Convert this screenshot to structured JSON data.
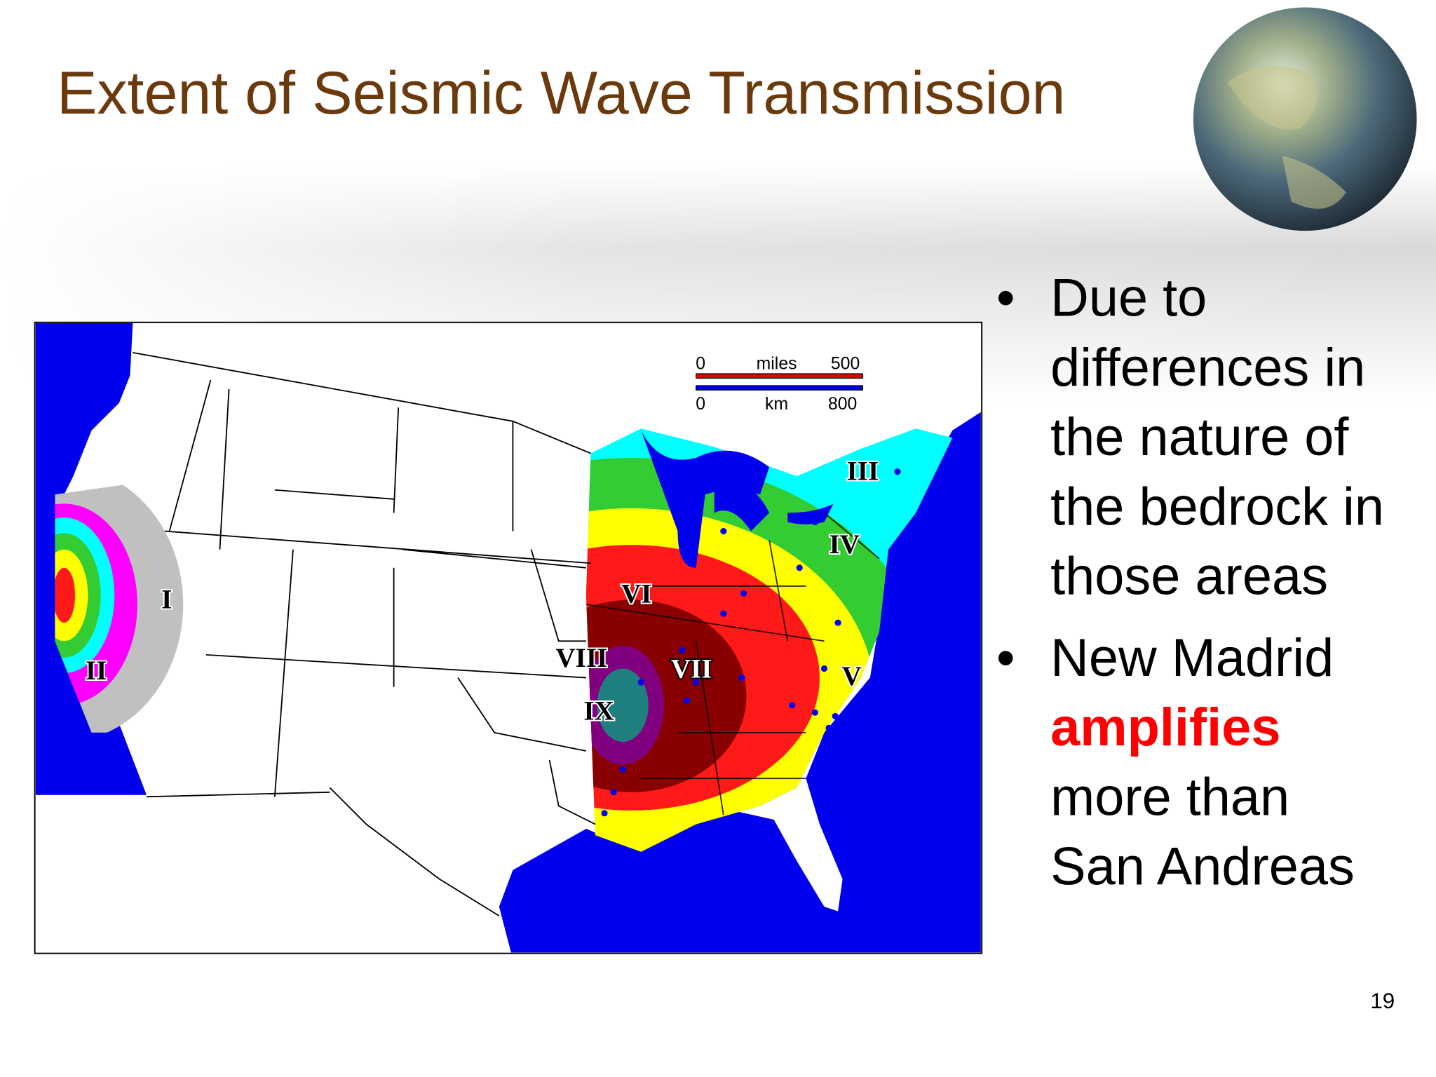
{
  "slide": {
    "title": "Extent of Seismic Wave Transmission",
    "bullets": [
      {
        "lines": [
          "Due to",
          "differences in",
          "the nature of",
          "the bedrock in",
          "those areas"
        ]
      },
      {
        "lines": [
          "New Madrid"
        ],
        "emphasis": "amplifies",
        "after": [
          "more than",
          "San Andreas"
        ]
      }
    ],
    "map": {
      "zone_labels": [
        "I",
        "II",
        "III",
        "IV",
        "V",
        "VI",
        "VII",
        "VIII",
        "IX"
      ],
      "scale_bar": {
        "miles_start": "0",
        "miles_unit": "miles",
        "miles_end": "500",
        "km_start": "0",
        "km_unit": "km",
        "km_end": "800"
      }
    },
    "page_number": "19"
  }
}
